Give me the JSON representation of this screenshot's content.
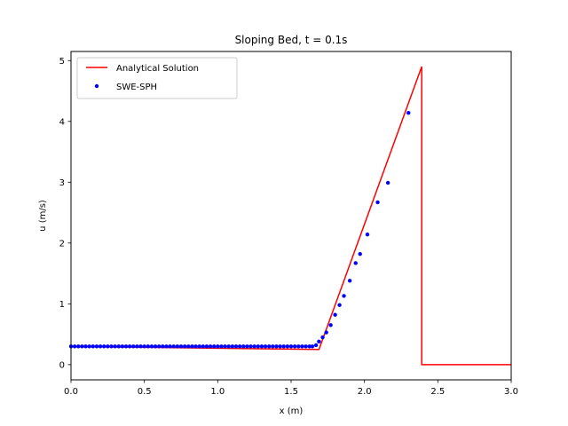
{
  "chart_data": {
    "type": "line",
    "title": "Sloping Bed, t = 0.1s",
    "xlabel": "x (m)",
    "ylabel": "u (m/s)",
    "xlim": [
      0,
      3.0
    ],
    "ylim": [
      -0.25,
      5.15
    ],
    "xticks": [
      0.0,
      0.5,
      1.0,
      1.5,
      2.0,
      2.5,
      3.0
    ],
    "xtick_labels": [
      "0.0",
      "0.5",
      "1.0",
      "1.5",
      "2.0",
      "2.5",
      "3.0"
    ],
    "yticks": [
      0,
      1,
      2,
      3,
      4,
      5
    ],
    "ytick_labels": [
      "0",
      "1",
      "2",
      "3",
      "4",
      "5"
    ],
    "grid": false,
    "legend_position": "top-left",
    "series": [
      {
        "name": "Analytical Solution",
        "kind": "line",
        "color": "#ff0000",
        "x": [
          0.0,
          1.69,
          2.39,
          2.39,
          3.0
        ],
        "y": [
          0.3,
          0.25,
          4.9,
          0.0,
          0.0
        ]
      },
      {
        "name": "SWE-SPH",
        "kind": "scatter",
        "color": "#0000ff",
        "x": [
          0.0,
          0.025,
          0.05,
          0.075,
          0.1,
          0.125,
          0.15,
          0.175,
          0.2,
          0.225,
          0.25,
          0.275,
          0.3,
          0.325,
          0.35,
          0.375,
          0.4,
          0.425,
          0.45,
          0.475,
          0.5,
          0.525,
          0.55,
          0.575,
          0.6,
          0.625,
          0.65,
          0.675,
          0.7,
          0.725,
          0.75,
          0.775,
          0.8,
          0.825,
          0.85,
          0.875,
          0.9,
          0.925,
          0.95,
          0.975,
          1.0,
          1.025,
          1.05,
          1.075,
          1.1,
          1.125,
          1.15,
          1.175,
          1.2,
          1.225,
          1.25,
          1.275,
          1.3,
          1.325,
          1.35,
          1.375,
          1.4,
          1.425,
          1.45,
          1.475,
          1.5,
          1.525,
          1.55,
          1.575,
          1.6,
          1.625,
          1.645,
          1.67,
          1.69,
          1.715,
          1.74,
          1.77,
          1.8,
          1.83,
          1.86,
          1.9,
          1.94,
          1.97,
          2.02,
          2.09,
          2.16,
          2.3
        ],
        "y": [
          0.3,
          0.3,
          0.3,
          0.3,
          0.3,
          0.3,
          0.3,
          0.3,
          0.3,
          0.3,
          0.3,
          0.3,
          0.3,
          0.3,
          0.3,
          0.3,
          0.3,
          0.3,
          0.3,
          0.3,
          0.3,
          0.3,
          0.3,
          0.3,
          0.3,
          0.3,
          0.3,
          0.3,
          0.3,
          0.3,
          0.3,
          0.3,
          0.3,
          0.3,
          0.3,
          0.3,
          0.3,
          0.3,
          0.3,
          0.3,
          0.3,
          0.3,
          0.3,
          0.3,
          0.3,
          0.3,
          0.3,
          0.3,
          0.3,
          0.3,
          0.3,
          0.3,
          0.3,
          0.3,
          0.3,
          0.3,
          0.3,
          0.3,
          0.3,
          0.3,
          0.3,
          0.3,
          0.3,
          0.3,
          0.3,
          0.3,
          0.3,
          0.32,
          0.38,
          0.45,
          0.53,
          0.65,
          0.82,
          0.98,
          1.13,
          1.38,
          1.67,
          1.82,
          2.14,
          2.67,
          2.99,
          4.14
        ]
      }
    ]
  }
}
